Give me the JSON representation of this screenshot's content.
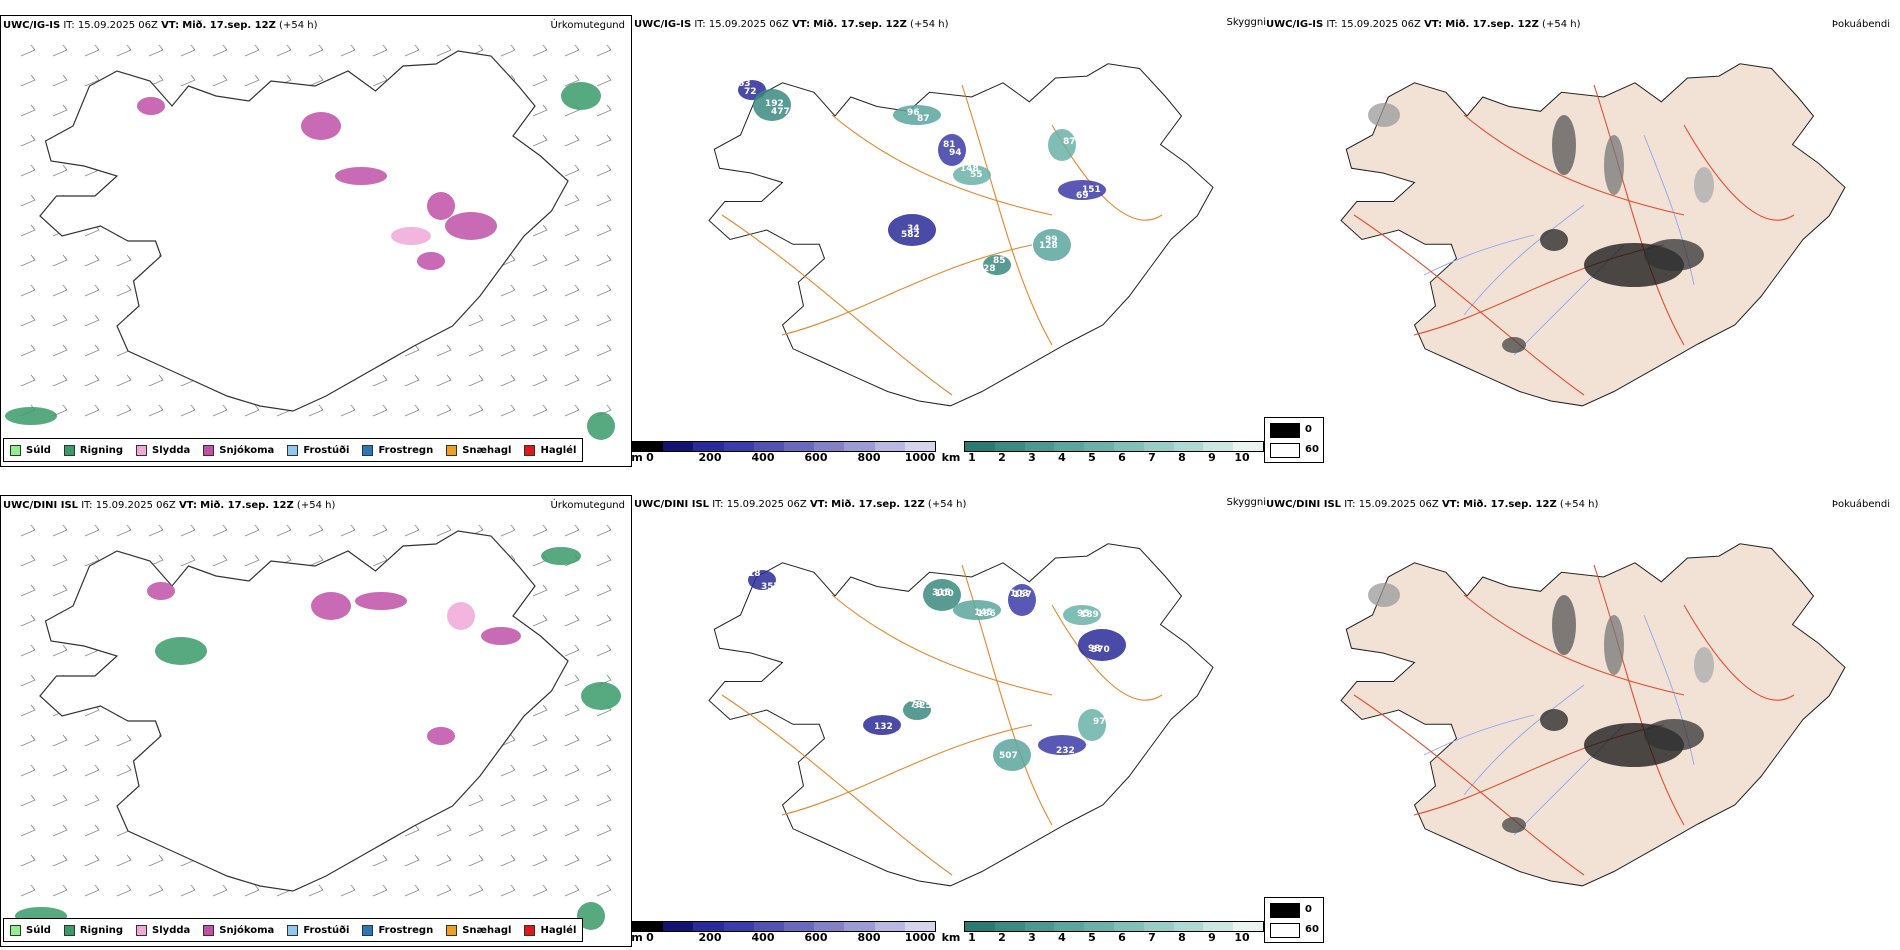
{
  "rows": [
    {
      "model": "UWC/IG-IS",
      "it_label": "IT:",
      "it_value": "15.09.2025 06Z",
      "vt_label": "VT:",
      "vt_value": "Mið. 17.sep. 12Z",
      "lead": "(+54 h)",
      "cloud_labels": [
        "63",
        "192",
        "87",
        "81",
        "55",
        "582",
        "85",
        "128",
        "69",
        "87",
        "72",
        "477",
        "96",
        "94",
        "148",
        "34",
        "28",
        "99",
        "151"
      ]
    },
    {
      "model": "UWC/DINI ISL",
      "it_label": "IT:",
      "it_value": "15.09.2025 06Z",
      "vt_label": "VT:",
      "vt_value": "Mið. 17.sep. 12Z",
      "lead": "(+54 h)",
      "cloud_labels": [
        "18",
        "100",
        "186",
        "157",
        "189",
        "370",
        "325",
        "507",
        "232",
        "97",
        "132",
        "357",
        "315",
        "145",
        "103",
        "95",
        "98",
        "79"
      ]
    }
  ],
  "panel_types": {
    "precip": "Úrkomutegund",
    "cloud": "Skyggni",
    "fog": "Þokuábendi"
  },
  "precip_legend": [
    {
      "label": "Súld",
      "color": "#90f090"
    },
    {
      "label": "Rigning",
      "color": "#3a9a6a"
    },
    {
      "label": "Slydda",
      "color": "#f0a8d8"
    },
    {
      "label": "Snjókoma",
      "color": "#c050a8"
    },
    {
      "label": "Frostúði",
      "color": "#90c8f0"
    },
    {
      "label": "Frostregn",
      "color": "#2a78b8"
    },
    {
      "label": "Snæhagl",
      "color": "#f0a020"
    },
    {
      "label": "Haglél",
      "color": "#e01818"
    }
  ],
  "cloud_base_scale": {
    "unit": "m",
    "ticks": [
      "0",
      "200",
      "400",
      "600",
      "800",
      "1000"
    ],
    "colors": [
      "#000000",
      "#141470",
      "#2a2a98",
      "#3c3ca8",
      "#5252b0",
      "#6a6abc",
      "#8282c8",
      "#9c9cd4",
      "#b8b8e0",
      "#d4d4ec"
    ]
  },
  "visibility_scale": {
    "unit": "km",
    "ticks": [
      "1",
      "2",
      "3",
      "4",
      "5",
      "6",
      "7",
      "8",
      "9",
      "10"
    ],
    "colors": [
      "#2a7a70",
      "#3a8a80",
      "#4a988e",
      "#5aa69c",
      "#6ab2a8",
      "#80c0b6",
      "#98ccc4",
      "#b0d8d2",
      "#cce6e2",
      "#eaf4f2"
    ]
  },
  "fog_legend": [
    {
      "label": "0",
      "color": "#000000"
    },
    {
      "label": "60",
      "color": "#ffffff"
    }
  ],
  "colors": {
    "land_fog": "#f2e2d6",
    "roads": "#e8862a",
    "roads_fog": "#e05030",
    "rivers": "#8fa6f0"
  }
}
